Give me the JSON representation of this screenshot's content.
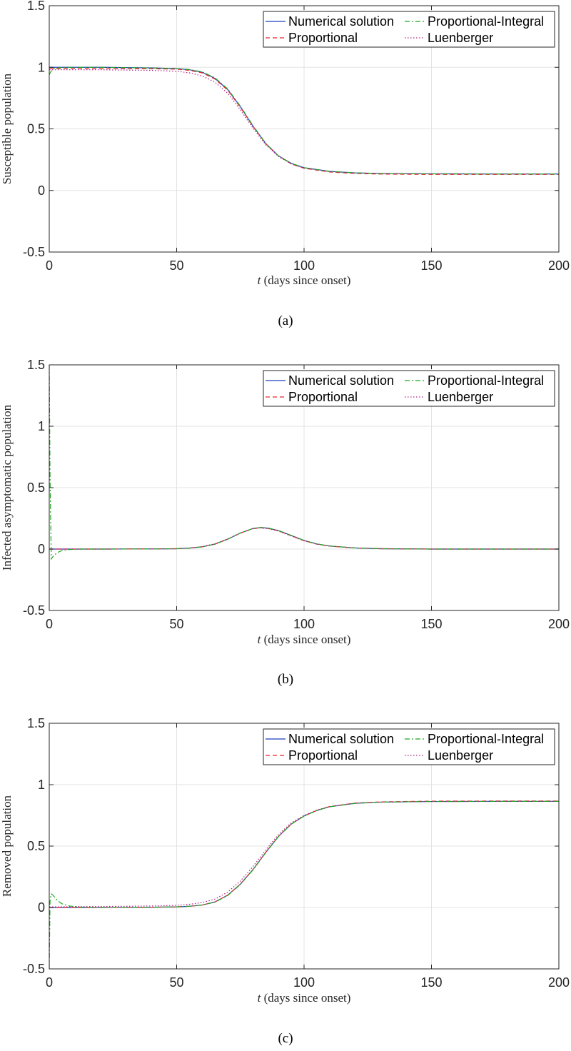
{
  "chart_data": [
    {
      "type": "line",
      "caption": "(a)",
      "xlabel_var": "t",
      "xlabel_rest": "(days since onset)",
      "ylabel": "Susceptible population",
      "xlim": [
        0,
        200
      ],
      "ylim": [
        -0.5,
        1.5
      ],
      "xticks": [
        "0",
        "50",
        "100",
        "150",
        "200"
      ],
      "yticks": [
        "-0.5",
        "0",
        "0.5",
        "1",
        "1.5"
      ],
      "grid": true,
      "legend_position": "top-right",
      "series": [
        {
          "name": "Numerical solution",
          "color": "#1f3fbf",
          "dash": "solid",
          "x": [
            0,
            20,
            40,
            50,
            55,
            60,
            65,
            70,
            75,
            80,
            85,
            90,
            95,
            100,
            110,
            120,
            130,
            150,
            175,
            200
          ],
          "y": [
            1.0,
            1.0,
            0.995,
            0.99,
            0.98,
            0.96,
            0.91,
            0.82,
            0.68,
            0.52,
            0.38,
            0.28,
            0.22,
            0.185,
            0.155,
            0.143,
            0.138,
            0.135,
            0.134,
            0.134
          ]
        },
        {
          "name": "Proportional",
          "color": "#e8282a",
          "dash": "dashed",
          "x": [
            0,
            20,
            40,
            50,
            55,
            60,
            65,
            70,
            75,
            80,
            85,
            90,
            95,
            100,
            110,
            120,
            130,
            150,
            175,
            200
          ],
          "y": [
            0.99,
            0.99,
            0.988,
            0.985,
            0.975,
            0.955,
            0.905,
            0.815,
            0.675,
            0.52,
            0.38,
            0.28,
            0.215,
            0.18,
            0.15,
            0.138,
            0.133,
            0.13,
            0.13,
            0.13
          ]
        },
        {
          "name": "Proportional-Integral",
          "color": "#1fa81f",
          "dash": "dashdot",
          "x": [
            0,
            0.5,
            1,
            2,
            4,
            8,
            20,
            40,
            50,
            55,
            60,
            65,
            70,
            75,
            80,
            85,
            90,
            95,
            100,
            110,
            120,
            130,
            150,
            175,
            200
          ],
          "y": [
            0.94,
            0.96,
            0.975,
            0.99,
            0.997,
            1.0,
            1.0,
            0.995,
            0.99,
            0.982,
            0.963,
            0.915,
            0.825,
            0.685,
            0.525,
            0.382,
            0.28,
            0.22,
            0.185,
            0.155,
            0.143,
            0.138,
            0.135,
            0.134,
            0.134
          ]
        },
        {
          "name": "Luenberger",
          "color": "#b0208a",
          "dash": "dotted",
          "x": [
            0,
            20,
            40,
            50,
            55,
            60,
            65,
            70,
            75,
            80,
            85,
            90,
            95,
            100,
            110,
            120,
            130,
            150,
            175,
            200
          ],
          "y": [
            0.98,
            0.98,
            0.975,
            0.968,
            0.955,
            0.93,
            0.88,
            0.79,
            0.655,
            0.505,
            0.37,
            0.275,
            0.215,
            0.182,
            0.153,
            0.142,
            0.137,
            0.135,
            0.134,
            0.134
          ]
        }
      ]
    },
    {
      "type": "line",
      "caption": "(b)",
      "xlabel_var": "t",
      "xlabel_rest": "(days since onset)",
      "ylabel": "Infected asymptomatic population",
      "xlim": [
        0,
        200
      ],
      "ylim": [
        -0.5,
        1.5
      ],
      "xticks": [
        "0",
        "50",
        "100",
        "150",
        "200"
      ],
      "yticks": [
        "-0.5",
        "0",
        "0.5",
        "1",
        "1.5"
      ],
      "grid": true,
      "legend_position": "top-right",
      "series": [
        {
          "name": "Numerical solution",
          "color": "#1f3fbf",
          "dash": "solid",
          "x": [
            0,
            20,
            40,
            50,
            55,
            60,
            65,
            70,
            75,
            80,
            83,
            86,
            90,
            95,
            100,
            105,
            110,
            120,
            130,
            150,
            175,
            200
          ],
          "y": [
            0.0,
            0.0,
            0.001,
            0.003,
            0.008,
            0.018,
            0.04,
            0.08,
            0.13,
            0.168,
            0.175,
            0.17,
            0.15,
            0.11,
            0.07,
            0.042,
            0.025,
            0.009,
            0.003,
            0.0,
            0.0,
            0.0
          ]
        },
        {
          "name": "Proportional",
          "color": "#e8282a",
          "dash": "dashed",
          "x": [
            0,
            20,
            40,
            50,
            55,
            60,
            65,
            70,
            75,
            80,
            83,
            86,
            90,
            95,
            100,
            105,
            110,
            120,
            130,
            150,
            175,
            200
          ],
          "y": [
            0.0,
            0.0,
            0.001,
            0.003,
            0.008,
            0.018,
            0.04,
            0.08,
            0.13,
            0.166,
            0.173,
            0.168,
            0.148,
            0.108,
            0.068,
            0.04,
            0.024,
            0.009,
            0.003,
            0.0,
            0.0,
            0.0
          ]
        },
        {
          "name": "Proportional-Integral",
          "color": "#1fa81f",
          "dash": "dashdot",
          "x": [
            0,
            0.3,
            0.8,
            1.5,
            3,
            5,
            8,
            12,
            20,
            40,
            50,
            55,
            60,
            65,
            70,
            75,
            80,
            83,
            86,
            90,
            95,
            100,
            105,
            110,
            120,
            130,
            150,
            175,
            200
          ],
          "y": [
            1.5,
            0.6,
            -0.08,
            -0.06,
            -0.03,
            -0.012,
            -0.004,
            0.0,
            0.0,
            0.001,
            0.003,
            0.008,
            0.018,
            0.04,
            0.08,
            0.13,
            0.168,
            0.176,
            0.171,
            0.151,
            0.111,
            0.071,
            0.042,
            0.025,
            0.009,
            0.003,
            0.0,
            0.0,
            0.0
          ]
        },
        {
          "name": "Luenberger",
          "color": "#b0208a",
          "dash": "dotted",
          "x": [
            0,
            20,
            40,
            50,
            55,
            60,
            65,
            70,
            75,
            80,
            83,
            86,
            90,
            95,
            100,
            105,
            110,
            120,
            130,
            150,
            175,
            200
          ],
          "y": [
            0.0,
            0.0,
            0.001,
            0.003,
            0.009,
            0.02,
            0.043,
            0.083,
            0.132,
            0.167,
            0.172,
            0.166,
            0.146,
            0.106,
            0.067,
            0.04,
            0.024,
            0.009,
            0.003,
            0.0,
            0.0,
            0.0
          ]
        }
      ]
    },
    {
      "type": "line",
      "caption": "(c)",
      "xlabel_var": "t",
      "xlabel_rest": "(days since onset)",
      "ylabel": "Removed population",
      "xlim": [
        0,
        200
      ],
      "ylim": [
        -0.5,
        1.5
      ],
      "xticks": [
        "0",
        "50",
        "100",
        "150",
        "200"
      ],
      "yticks": [
        "-0.5",
        "0",
        "0.5",
        "1",
        "1.5"
      ],
      "grid": true,
      "legend_position": "top-right",
      "series": [
        {
          "name": "Numerical solution",
          "color": "#1f3fbf",
          "dash": "solid",
          "x": [
            0,
            20,
            40,
            50,
            55,
            60,
            65,
            70,
            75,
            80,
            85,
            90,
            95,
            100,
            105,
            110,
            120,
            130,
            150,
            175,
            200
          ],
          "y": [
            0.0,
            0.0,
            0.002,
            0.005,
            0.01,
            0.02,
            0.045,
            0.1,
            0.19,
            0.31,
            0.45,
            0.58,
            0.68,
            0.745,
            0.79,
            0.82,
            0.848,
            0.858,
            0.863,
            0.864,
            0.864
          ]
        },
        {
          "name": "Proportional",
          "color": "#e8282a",
          "dash": "dashed",
          "x": [
            0,
            20,
            40,
            50,
            55,
            60,
            65,
            70,
            75,
            80,
            85,
            90,
            95,
            100,
            105,
            110,
            120,
            130,
            150,
            175,
            200
          ],
          "y": [
            0.0,
            0.0,
            0.002,
            0.005,
            0.01,
            0.02,
            0.045,
            0.1,
            0.19,
            0.31,
            0.45,
            0.58,
            0.68,
            0.745,
            0.79,
            0.822,
            0.85,
            0.86,
            0.866,
            0.867,
            0.867
          ]
        },
        {
          "name": "Proportional-Integral",
          "color": "#1fa81f",
          "dash": "dashdot",
          "x": [
            0,
            0.3,
            0.8,
            1.5,
            3,
            5,
            8,
            12,
            20,
            40,
            50,
            55,
            60,
            65,
            70,
            75,
            80,
            85,
            90,
            95,
            100,
            105,
            110,
            120,
            130,
            150,
            175,
            200
          ],
          "y": [
            -0.5,
            0.05,
            0.11,
            0.1,
            0.06,
            0.03,
            0.012,
            0.004,
            0.0,
            0.002,
            0.005,
            0.01,
            0.02,
            0.043,
            0.097,
            0.187,
            0.307,
            0.447,
            0.578,
            0.678,
            0.744,
            0.79,
            0.82,
            0.848,
            0.858,
            0.863,
            0.864,
            0.864
          ]
        },
        {
          "name": "Luenberger",
          "color": "#b0208a",
          "dash": "dotted",
          "x": [
            0,
            20,
            40,
            50,
            55,
            60,
            65,
            70,
            75,
            80,
            85,
            90,
            95,
            100,
            105,
            110,
            120,
            130,
            150,
            175,
            200
          ],
          "y": [
            0.005,
            0.008,
            0.012,
            0.018,
            0.026,
            0.04,
            0.068,
            0.125,
            0.215,
            0.335,
            0.47,
            0.595,
            0.69,
            0.75,
            0.793,
            0.822,
            0.849,
            0.858,
            0.863,
            0.864,
            0.864
          ]
        }
      ]
    }
  ]
}
